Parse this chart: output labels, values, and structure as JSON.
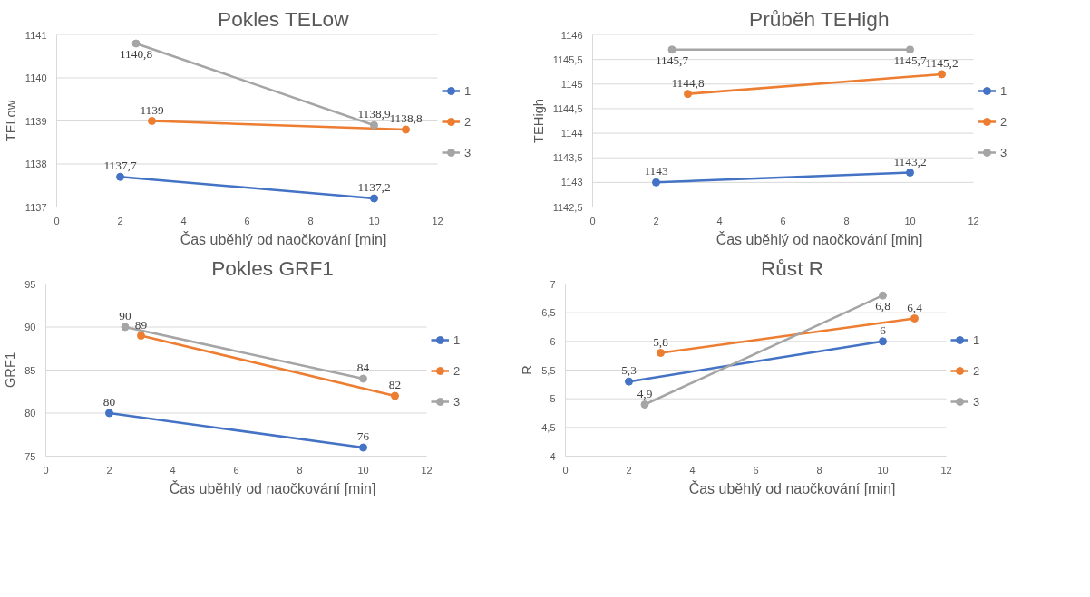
{
  "chart_data": [
    {
      "type": "line",
      "title": "Pokles TELow",
      "xlabel": "Čas uběhlý od naočkování [min]",
      "ylabel": "TELow",
      "xlim": [
        0,
        12
      ],
      "xticks": [
        0,
        2,
        4,
        6,
        8,
        10,
        12
      ],
      "ylim": [
        1137,
        1141
      ],
      "yticks": [
        1137,
        1138,
        1139,
        1140,
        1141
      ],
      "grid": "y",
      "legend": "right",
      "marker": "circle",
      "series": [
        {
          "name": "1",
          "color": "#4472c4",
          "x": [
            2,
            10
          ],
          "values": [
            1137.7,
            1137.2
          ],
          "value_labels": [
            "1137,7",
            "1137,2"
          ]
        },
        {
          "name": "2",
          "color": "#ed7d31",
          "x": [
            3,
            11
          ],
          "values": [
            1139,
            1138.8
          ],
          "value_labels": [
            "1139",
            "1138,8"
          ]
        },
        {
          "name": "3",
          "color": "#a5a5a5",
          "x": [
            2.5,
            10
          ],
          "values": [
            1140.8,
            1138.9
          ],
          "value_labels": [
            "1140,8",
            "1138,9"
          ]
        }
      ]
    },
    {
      "type": "line",
      "title": "Průběh TEHigh",
      "xlabel": "Čas uběhlý od naočkování [min]",
      "ylabel": "TEHigh",
      "xlim": [
        0,
        12
      ],
      "xticks": [
        0,
        2,
        4,
        6,
        8,
        10,
        12
      ],
      "ylim": [
        1142.5,
        1146
      ],
      "yticks": [
        {
          "value": 1142.5,
          "label": "1142,5"
        },
        1143,
        {
          "value": 1143.5,
          "label": "1143,5"
        },
        1144,
        {
          "value": 1144.5,
          "label": "1144,5"
        },
        1145,
        {
          "value": 1145.5,
          "label": "1145,5"
        },
        1146
      ],
      "grid": "y",
      "legend": "right",
      "marker": "circle",
      "series": [
        {
          "name": "1",
          "color": "#4472c4",
          "x": [
            2,
            10
          ],
          "values": [
            1143,
            1143.2
          ],
          "value_labels": [
            "1143",
            "1143,2"
          ]
        },
        {
          "name": "2",
          "color": "#ed7d31",
          "x": [
            3,
            11
          ],
          "values": [
            1144.8,
            1145.2
          ],
          "value_labels": [
            "1144,8",
            "1145,2"
          ]
        },
        {
          "name": "3",
          "color": "#a5a5a5",
          "x": [
            2.5,
            10
          ],
          "values": [
            1145.7,
            1145.7
          ],
          "value_labels": [
            "1145,7",
            "1145,7"
          ]
        }
      ]
    },
    {
      "type": "line",
      "title": "Pokles GRF1",
      "xlabel": "Čas uběhlý od naočkování [min]",
      "ylabel": "GRF1",
      "xlim": [
        0,
        12
      ],
      "xticks": [
        0,
        2,
        4,
        6,
        8,
        10,
        12
      ],
      "ylim": [
        75,
        95
      ],
      "yticks": [
        75,
        80,
        85,
        90,
        95
      ],
      "grid": "y",
      "legend": "right",
      "marker": "circle",
      "series": [
        {
          "name": "1",
          "color": "#4472c4",
          "x": [
            2,
            10
          ],
          "values": [
            80,
            76
          ],
          "value_labels": [
            "80",
            "76"
          ]
        },
        {
          "name": "2",
          "color": "#ed7d31",
          "x": [
            3,
            11
          ],
          "values": [
            89,
            82
          ],
          "value_labels": [
            "89",
            "82"
          ]
        },
        {
          "name": "3",
          "color": "#a5a5a5",
          "x": [
            2.5,
            10
          ],
          "values": [
            90,
            84
          ],
          "value_labels": [
            "90",
            "84"
          ]
        }
      ]
    },
    {
      "type": "line",
      "title": "Růst R",
      "xlabel": "Čas uběhlý od naočkování [min]",
      "ylabel": "R",
      "xlim": [
        0,
        12
      ],
      "xticks": [
        0,
        2,
        4,
        6,
        8,
        10,
        12
      ],
      "ylim": [
        4,
        7
      ],
      "yticks": [
        4,
        {
          "value": 4.5,
          "label": "4,5"
        },
        5,
        {
          "value": 5.5,
          "label": "5,5"
        },
        6,
        {
          "value": 6.5,
          "label": "6,5"
        },
        7
      ],
      "grid": "y",
      "legend": "right",
      "marker": "circle",
      "series": [
        {
          "name": "1",
          "color": "#4472c4",
          "x": [
            2,
            10
          ],
          "values": [
            5.3,
            6
          ],
          "value_labels": [
            "5,3",
            "6"
          ]
        },
        {
          "name": "2",
          "color": "#ed7d31",
          "x": [
            3,
            11
          ],
          "values": [
            5.8,
            6.4
          ],
          "value_labels": [
            "5,8",
            "6,4"
          ]
        },
        {
          "name": "3",
          "color": "#a5a5a5",
          "x": [
            2.5,
            10
          ],
          "values": [
            4.9,
            6.8
          ],
          "value_labels": [
            "4,9",
            "6,8"
          ]
        }
      ]
    }
  ]
}
